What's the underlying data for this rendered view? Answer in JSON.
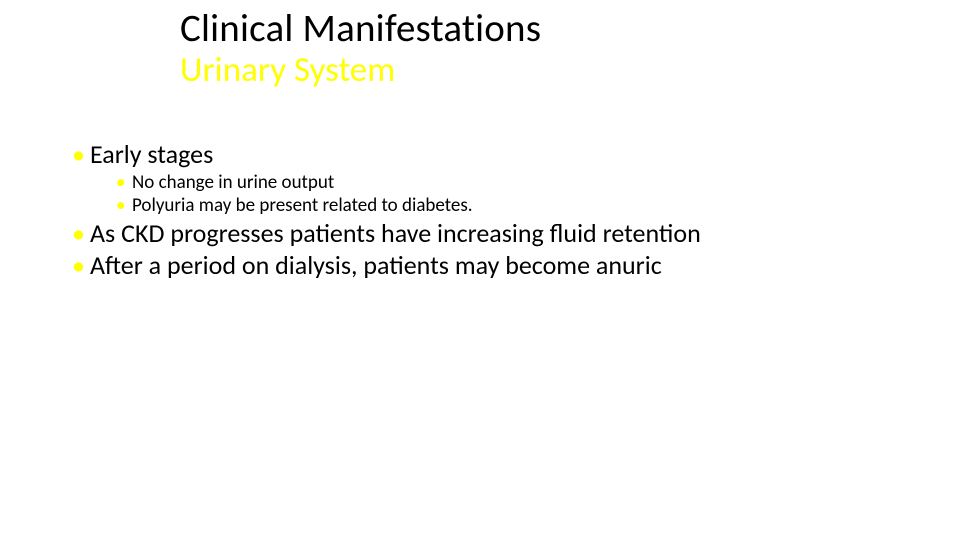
{
  "colors": {
    "background": "#ffffff",
    "text": "#000000",
    "accent_bullet": "#ffff00",
    "subtitle": "#ffff00"
  },
  "typography": {
    "title_fontsize_pt": 29,
    "subtitle_fontsize_pt": 26,
    "lvl1_fontsize_pt": 20,
    "lvl2_fontsize_pt": 14,
    "font_family": "Calibri"
  },
  "title": {
    "line1": "Clinical Manifestations",
    "line2": "Urinary System"
  },
  "body": {
    "items": [
      {
        "text": "Early stages",
        "children": [
          {
            "text": "No change in urine output"
          },
          {
            "text": "Polyuria may be present related to diabetes."
          }
        ]
      },
      {
        "text": "As CKD progresses patients have increasing fluid retention",
        "children": []
      },
      {
        "text": "After a period on dialysis, patients may become anuric",
        "children": []
      }
    ]
  }
}
